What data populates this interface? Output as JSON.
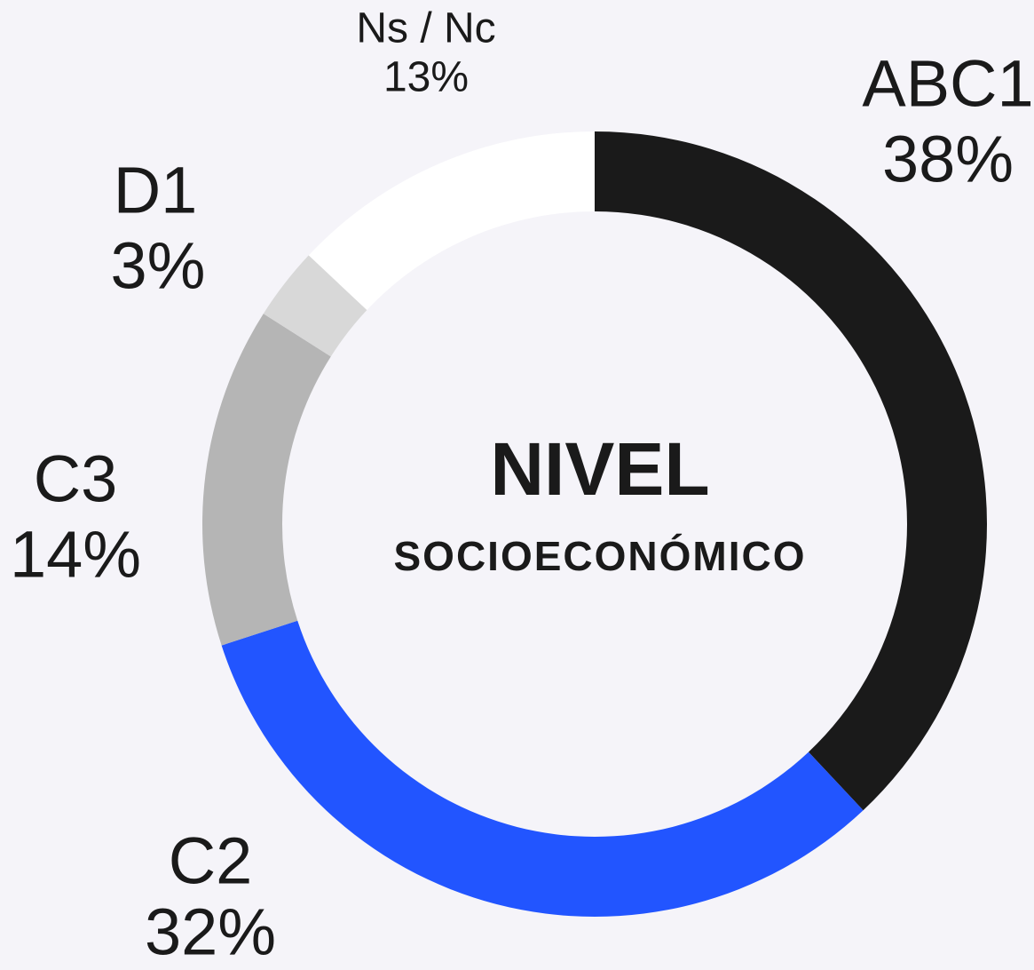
{
  "chart_data": {
    "type": "donut",
    "title": "NIVEL",
    "subtitle": "SOCIOECONÓMICO",
    "categories": [
      "ABC1",
      "C2",
      "C3",
      "D1",
      "Ns / Nc"
    ],
    "values": [
      38,
      32,
      14,
      3,
      13
    ],
    "value_labels": [
      "38%",
      "32%",
      "14%",
      "3%",
      "13%"
    ],
    "colors": [
      "#1a1a1a",
      "#2255ff",
      "#b5b5b5",
      "#d8d8d8",
      "#ffffff"
    ]
  }
}
